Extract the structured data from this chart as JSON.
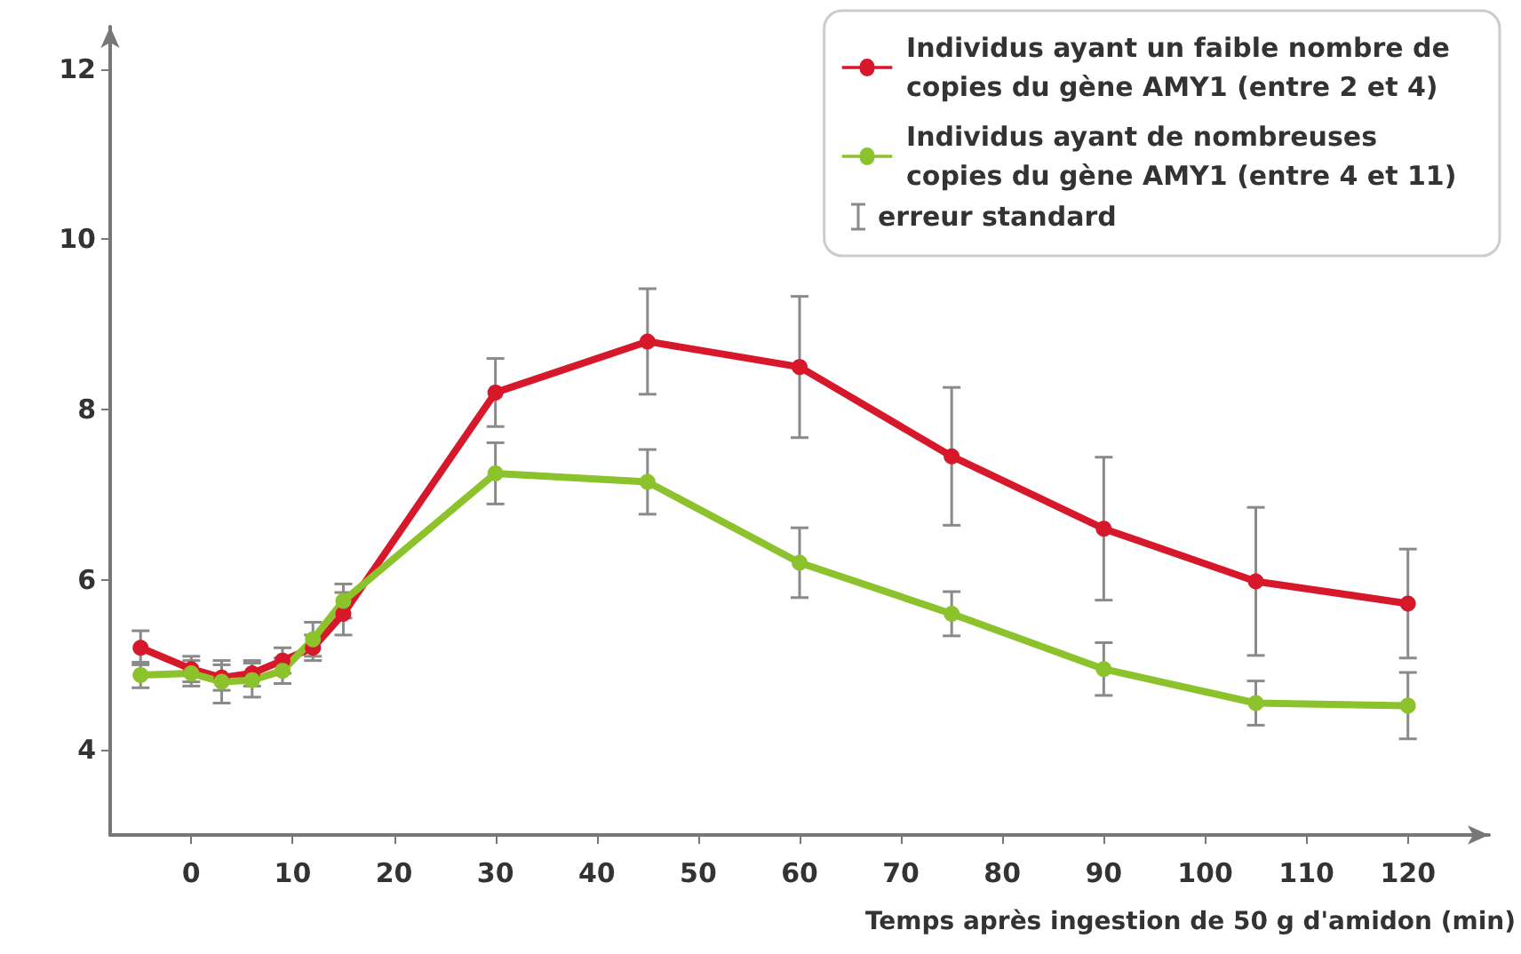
{
  "chart_data": {
    "type": "line",
    "xlabel": "Temps après ingestion de 50 g d'amidon (min)",
    "x": [
      -5,
      0,
      3,
      6,
      9,
      12,
      15,
      30,
      45,
      60,
      75,
      90,
      105,
      120
    ],
    "series": [
      {
        "name": "Individus ayant un faible nombre de copies du gène AMY1 (entre 2 et 4)",
        "color": "#d7182a",
        "values": [
          5.2,
          4.95,
          4.85,
          4.9,
          5.05,
          5.2,
          5.6,
          8.2,
          8.8,
          8.5,
          7.45,
          6.6,
          5.98,
          5.72
        ],
        "errors": [
          0.2,
          0.15,
          0.15,
          0.15,
          0.15,
          0.15,
          0.25,
          0.4,
          0.62,
          0.83,
          0.81,
          0.84,
          0.87,
          0.64
        ]
      },
      {
        "name": "Individus ayant de nombreuses copies du gène AMY1 (entre 4 et 11)",
        "color": "#8cc22b",
        "values": [
          4.88,
          4.9,
          4.8,
          4.82,
          4.93,
          5.3,
          5.75,
          7.25,
          7.15,
          6.2,
          5.6,
          4.95,
          4.55,
          4.52
        ],
        "errors": [
          0.15,
          0.15,
          0.25,
          0.2,
          0.15,
          0.2,
          0.2,
          0.36,
          0.38,
          0.41,
          0.26,
          0.31,
          0.26,
          0.39
        ]
      }
    ],
    "annotations": [
      "erreur standard"
    ],
    "xlim": [
      -8,
      128
    ],
    "xticks": [
      0,
      10,
      20,
      30,
      40,
      50,
      60,
      70,
      80,
      90,
      100,
      110,
      120
    ],
    "ylim": [
      3,
      12.5
    ],
    "yticks": [
      4,
      6,
      8,
      10,
      12
    ],
    "grid": false,
    "legend": "top right",
    "marker": "circle",
    "line_style": "solid"
  }
}
